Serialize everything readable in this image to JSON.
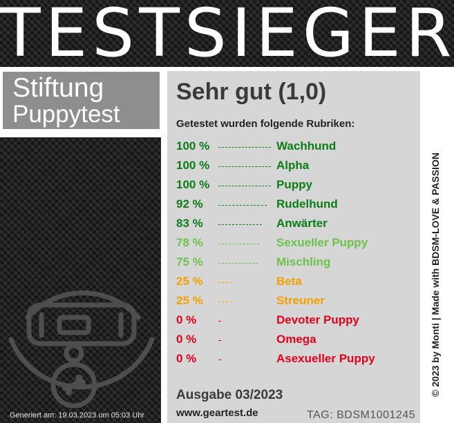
{
  "header": {
    "title": "TESTSIEGER"
  },
  "brand": {
    "line1": "Stiftung",
    "line2": "Puppytest"
  },
  "rating": "Sehr gut (1,0)",
  "rubrics_heading": "Getestet wurden folgende Rubriken:",
  "rubrics": [
    {
      "percent": "100 %",
      "value": 100,
      "name": "Wachhund",
      "color": "#0a7d14"
    },
    {
      "percent": "100 %",
      "value": 100,
      "name": "Alpha",
      "color": "#0a7d14"
    },
    {
      "percent": "100 %",
      "value": 100,
      "name": "Puppy",
      "color": "#0a7d14"
    },
    {
      "percent": "92 %",
      "value": 92,
      "name": "Rudelhund",
      "color": "#0a7d14"
    },
    {
      "percent": "83 %",
      "value": 83,
      "name": "Anwärter",
      "color": "#0a7d14"
    },
    {
      "percent": "78 %",
      "value": 78,
      "name": "Sexueller Puppy",
      "color": "#6cc24a"
    },
    {
      "percent": "75 %",
      "value": 75,
      "name": "Mischling",
      "color": "#6cc24a"
    },
    {
      "percent": "25 %",
      "value": 25,
      "name": "Beta",
      "color": "#f5a000"
    },
    {
      "percent": "25 %",
      "value": 25,
      "name": "Streuner",
      "color": "#f5a000"
    },
    {
      "percent": "0 %",
      "value": 0,
      "name": "Devoter Puppy",
      "color": "#e3001b"
    },
    {
      "percent": "0 %",
      "value": 0,
      "name": "Omega",
      "color": "#e3001b"
    },
    {
      "percent": "0 %",
      "value": 0,
      "name": "Asexueller Puppy",
      "color": "#e3001b"
    }
  ],
  "issue": "Ausgabe 03/2023",
  "website": "www.geartest.de",
  "tag": "TAG: BDSM1001245",
  "generated": "Generiert am: 19.03.2023 um 05:03 Uhr",
  "side_credit": "© 2023 by Monti | Made with BDSM-LOVE & PASSION",
  "icons": {
    "collar": "dog-collar-icon",
    "tag": "bone-tag-icon"
  }
}
